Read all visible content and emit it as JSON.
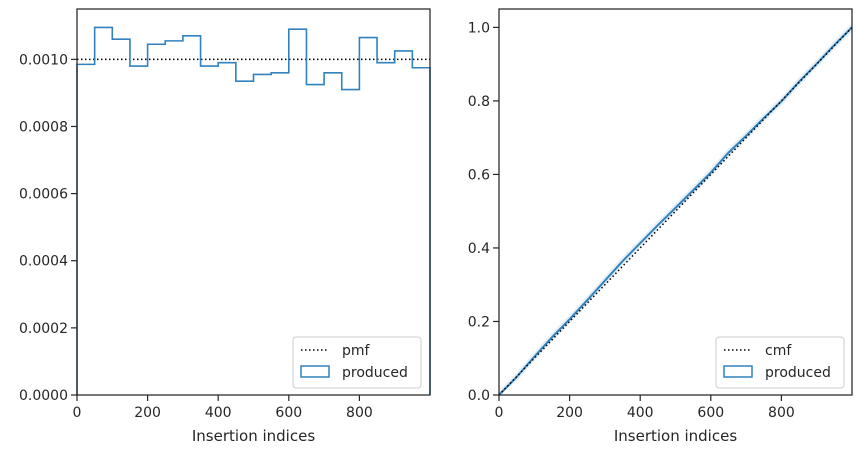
{
  "colors": {
    "produced": "#3182bd",
    "reference": "#000000",
    "band": "#c6dbef",
    "axis": "#262626",
    "legend_border": "#cccccc"
  },
  "chart_data": [
    {
      "type": "histogram",
      "xlabel": "Insertion indices",
      "ylabel": "",
      "xlim": [
        0,
        1000
      ],
      "ylim": [
        0,
        0.00115
      ],
      "xticks": [
        0,
        200,
        400,
        600,
        800
      ],
      "xtick_labels": [
        "0",
        "200",
        "400",
        "600",
        "800"
      ],
      "yticks": [
        0,
        0.0002,
        0.0004,
        0.0006,
        0.0008,
        0.001
      ],
      "ytick_labels": [
        "0.0000",
        "0.0002",
        "0.0004",
        "0.0006",
        "0.0008",
        "0.0010"
      ],
      "legend": {
        "position": "lower-right",
        "entries": [
          {
            "label": "pmf",
            "style": "dotted-line"
          },
          {
            "label": "produced",
            "style": "step-patch"
          }
        ]
      },
      "reference_line": {
        "name": "pmf",
        "y": 0.001
      },
      "bins": [
        0,
        50,
        100,
        150,
        200,
        250,
        300,
        350,
        400,
        450,
        500,
        550,
        600,
        650,
        700,
        750,
        800,
        850,
        900,
        950,
        1000
      ],
      "values": [
        0.000985,
        0.001095,
        0.00106,
        0.00098,
        0.001045,
        0.001055,
        0.00107,
        0.00098,
        0.00099,
        0.000935,
        0.000955,
        0.00096,
        0.00109,
        0.000925,
        0.00096,
        0.00091,
        0.001065,
        0.00099,
        0.001025,
        0.000975
      ],
      "grid": false
    },
    {
      "type": "line",
      "xlabel": "Insertion indices",
      "ylabel": "",
      "xlim": [
        0,
        1000
      ],
      "ylim": [
        0,
        1.05
      ],
      "xticks": [
        0,
        200,
        400,
        600,
        800
      ],
      "xtick_labels": [
        "0",
        "200",
        "400",
        "600",
        "800"
      ],
      "yticks": [
        0,
        0.2,
        0.4,
        0.6,
        0.8,
        1.0
      ],
      "ytick_labels": [
        "0.0",
        "0.2",
        "0.4",
        "0.6",
        "0.8",
        "1.0"
      ],
      "legend": {
        "position": "lower-right",
        "entries": [
          {
            "label": "cmf",
            "style": "dotted-line"
          },
          {
            "label": "produced",
            "style": "step-patch"
          }
        ]
      },
      "reference_line": {
        "name": "cmf",
        "x": [
          0,
          1000
        ],
        "y": [
          0,
          1
        ]
      },
      "series": [
        {
          "x": [
            0,
            50,
            100,
            150,
            200,
            250,
            300,
            350,
            400,
            450,
            500,
            550,
            600,
            650,
            700,
            750,
            800,
            850,
            900,
            950,
            1000
          ],
          "y": [
            0,
            0.049,
            0.104,
            0.157,
            0.206,
            0.258,
            0.311,
            0.364,
            0.413,
            0.462,
            0.509,
            0.557,
            0.605,
            0.659,
            0.705,
            0.753,
            0.799,
            0.852,
            0.901,
            0.952,
            1.0
          ]
        }
      ],
      "grid": false
    }
  ]
}
